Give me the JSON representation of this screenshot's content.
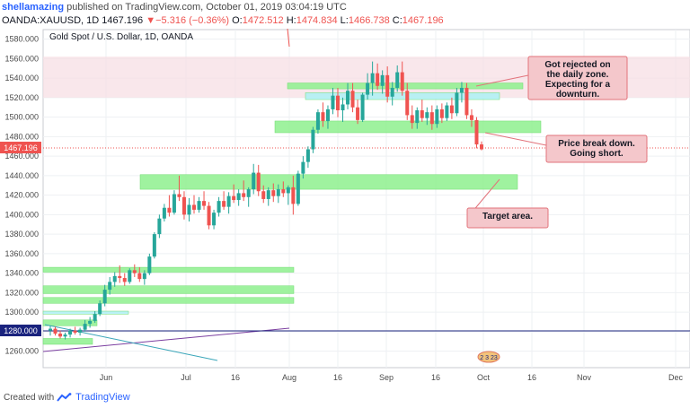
{
  "header": {
    "user": "shellamazing",
    "published": "published on TradingView.com, October 01, 2019 03:04:19 UTC",
    "symbol": "OANDA:XAUUSD, 1D",
    "last": "1467.196",
    "change": "▼−5.316 (−0.36%)",
    "open_label": "O:",
    "open": "1472.512",
    "high_label": "H:",
    "high": "1474.834",
    "low_label": "L:",
    "low": "1466.738",
    "close_label": "C:",
    "close": "1467.196"
  },
  "footer": {
    "created_with": "Created with",
    "brand": "TradingView"
  },
  "colors": {
    "bull": "#26a69a",
    "bear": "#ef5350",
    "zone_green": "#8ef08e",
    "zone_cyan": "#aef0f5",
    "zone_pink": "#f6dde2",
    "callout": "#f4c7cb",
    "axis_blue": "#1a237e"
  },
  "chart_data": {
    "type": "candlestick",
    "title": "Gold Spot / U.S. Dollar, 1D, OANDA",
    "ylim": [
      1250,
      1575
    ],
    "x_tick_labels": [
      "Jun",
      "Jul",
      "16",
      "Aug",
      "16",
      "Sep",
      "16",
      "Oct",
      "16",
      "Nov",
      "Dec"
    ],
    "y_tick_labels": [
      1260,
      1280,
      1300,
      1320,
      1340,
      1360,
      1380,
      1400,
      1420,
      1440,
      1460,
      1480,
      1500,
      1520,
      1540,
      1560,
      1580
    ],
    "last_price_label": "1467.196",
    "support_label": "1280.000",
    "candles": [
      [
        1281,
        1286,
        1276,
        1283
      ],
      [
        1283,
        1285,
        1276,
        1278
      ],
      [
        1278,
        1281,
        1273,
        1275
      ],
      [
        1275,
        1279,
        1272,
        1277
      ],
      [
        1277,
        1283,
        1274,
        1281
      ],
      [
        1281,
        1285,
        1277,
        1279
      ],
      [
        1279,
        1284,
        1276,
        1282
      ],
      [
        1282,
        1292,
        1280,
        1288
      ],
      [
        1288,
        1295,
        1284,
        1291
      ],
      [
        1291,
        1301,
        1289,
        1298
      ],
      [
        1298,
        1312,
        1296,
        1309
      ],
      [
        1309,
        1328,
        1306,
        1323
      ],
      [
        1323,
        1336,
        1318,
        1331
      ],
      [
        1331,
        1341,
        1326,
        1337
      ],
      [
        1337,
        1348,
        1330,
        1335
      ],
      [
        1335,
        1340,
        1327,
        1331
      ],
      [
        1331,
        1345,
        1329,
        1343
      ],
      [
        1343,
        1349,
        1336,
        1340
      ],
      [
        1340,
        1346,
        1331,
        1334
      ],
      [
        1334,
        1343,
        1328,
        1340
      ],
      [
        1340,
        1360,
        1338,
        1357
      ],
      [
        1357,
        1382,
        1355,
        1380
      ],
      [
        1380,
        1400,
        1376,
        1396
      ],
      [
        1396,
        1411,
        1393,
        1407
      ],
      [
        1407,
        1420,
        1398,
        1402
      ],
      [
        1402,
        1425,
        1400,
        1421
      ],
      [
        1421,
        1440,
        1414,
        1418
      ],
      [
        1418,
        1424,
        1395,
        1400
      ],
      [
        1400,
        1417,
        1393,
        1410
      ],
      [
        1410,
        1420,
        1401,
        1405
      ],
      [
        1405,
        1418,
        1402,
        1414
      ],
      [
        1414,
        1424,
        1405,
        1409
      ],
      [
        1409,
        1413,
        1385,
        1389
      ],
      [
        1389,
        1405,
        1385,
        1402
      ],
      [
        1402,
        1418,
        1398,
        1414
      ],
      [
        1414,
        1424,
        1405,
        1408
      ],
      [
        1408,
        1423,
        1401,
        1419
      ],
      [
        1419,
        1431,
        1412,
        1415
      ],
      [
        1415,
        1426,
        1409,
        1422
      ],
      [
        1422,
        1435,
        1414,
        1418
      ],
      [
        1418,
        1428,
        1408,
        1426
      ],
      [
        1426,
        1452,
        1421,
        1443
      ],
      [
        1443,
        1451,
        1419,
        1424
      ],
      [
        1424,
        1430,
        1412,
        1416
      ],
      [
        1416,
        1428,
        1409,
        1425
      ],
      [
        1425,
        1432,
        1413,
        1419
      ],
      [
        1419,
        1431,
        1412,
        1426
      ],
      [
        1426,
        1434,
        1418,
        1422
      ],
      [
        1422,
        1430,
        1410,
        1428
      ],
      [
        1428,
        1440,
        1400,
        1411
      ],
      [
        1411,
        1445,
        1409,
        1442
      ],
      [
        1442,
        1460,
        1437,
        1454
      ],
      [
        1454,
        1470,
        1448,
        1467
      ],
      [
        1467,
        1490,
        1463,
        1487
      ],
      [
        1487,
        1508,
        1483,
        1505
      ],
      [
        1505,
        1515,
        1490,
        1496
      ],
      [
        1496,
        1512,
        1488,
        1508
      ],
      [
        1508,
        1530,
        1503,
        1522
      ],
      [
        1522,
        1530,
        1500,
        1507
      ],
      [
        1507,
        1520,
        1495,
        1513
      ],
      [
        1513,
        1535,
        1508,
        1527
      ],
      [
        1527,
        1535,
        1505,
        1510
      ],
      [
        1510,
        1518,
        1493,
        1497
      ],
      [
        1497,
        1525,
        1495,
        1523
      ],
      [
        1523,
        1545,
        1518,
        1535
      ],
      [
        1535,
        1557,
        1522,
        1545
      ],
      [
        1545,
        1555,
        1528,
        1532
      ],
      [
        1532,
        1548,
        1524,
        1543
      ],
      [
        1543,
        1552,
        1515,
        1521
      ],
      [
        1521,
        1536,
        1512,
        1530
      ],
      [
        1530,
        1553,
        1526,
        1546
      ],
      [
        1546,
        1557,
        1522,
        1527
      ],
      [
        1527,
        1535,
        1497,
        1502
      ],
      [
        1502,
        1512,
        1488,
        1494
      ],
      [
        1494,
        1510,
        1488,
        1507
      ],
      [
        1507,
        1518,
        1495,
        1499
      ],
      [
        1499,
        1510,
        1492,
        1505
      ],
      [
        1505,
        1512,
        1487,
        1493
      ],
      [
        1493,
        1512,
        1489,
        1508
      ],
      [
        1508,
        1514,
        1494,
        1499
      ],
      [
        1499,
        1515,
        1496,
        1512
      ],
      [
        1512,
        1520,
        1498,
        1504
      ],
      [
        1504,
        1530,
        1501,
        1525
      ],
      [
        1525,
        1536,
        1515,
        1530
      ],
      [
        1530,
        1535,
        1498,
        1502
      ],
      [
        1502,
        1508,
        1490,
        1497
      ],
      [
        1497,
        1500,
        1468,
        1472
      ],
      [
        1472,
        1475,
        1466,
        1467
      ]
    ],
    "zones": [
      {
        "kind": "pink",
        "price_top": 1562,
        "price_bottom": 1520
      },
      {
        "kind": "green",
        "price_top": 1535,
        "price_bottom": 1529
      },
      {
        "kind": "cyan",
        "price_top": 1525,
        "price_bottom": 1518
      },
      {
        "kind": "green",
        "price_top": 1496,
        "price_bottom": 1484
      },
      {
        "kind": "green",
        "price_top": 1441,
        "price_bottom": 1426
      },
      {
        "kind": "green",
        "price_top": 1346,
        "price_bottom": 1341
      },
      {
        "kind": "green",
        "price_top": 1327,
        "price_bottom": 1319
      },
      {
        "kind": "green",
        "price_top": 1315,
        "price_bottom": 1309
      },
      {
        "kind": "cyan",
        "price_top": 1301,
        "price_bottom": 1298
      },
      {
        "kind": "green",
        "price_top": 1292,
        "price_bottom": 1286
      },
      {
        "kind": "green",
        "price_top": 1273,
        "price_bottom": 1267
      }
    ],
    "annotations": [
      {
        "text": "Got rejected on the daily zone. Expecting for a downturn."
      },
      {
        "text": "Price break down. Going short."
      },
      {
        "text": "Target area."
      }
    ],
    "events_badge": "2 3 23"
  }
}
